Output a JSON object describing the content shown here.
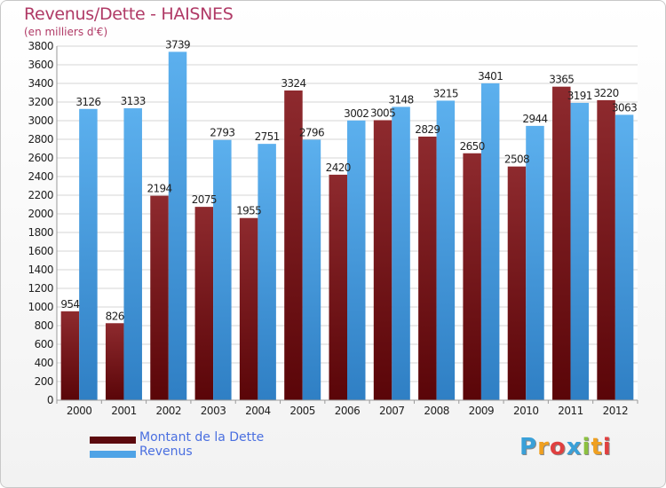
{
  "header": {
    "title": "Revenus/Dette - HAISNES",
    "subtitle": "(en milliers d'€)"
  },
  "legend": {
    "items": [
      {
        "label": "Montant de la Dette",
        "color": "#7a1418"
      },
      {
        "label": "Revenus",
        "color": "#4fa3e6"
      }
    ]
  },
  "logo": {
    "text": "Proxiti",
    "letters": [
      {
        "char": "P",
        "color": "#3aa0d8"
      },
      {
        "char": "r",
        "color": "#f0a020"
      },
      {
        "char": "o",
        "color": "#e04040"
      },
      {
        "char": "x",
        "color": "#3aa0d8"
      },
      {
        "char": "i",
        "color": "#8cc040"
      },
      {
        "char": "t",
        "color": "#f0a020"
      },
      {
        "char": "i",
        "color": "#e04040"
      }
    ]
  },
  "chart_data": {
    "type": "bar",
    "categories": [
      "2000",
      "2001",
      "2002",
      "2003",
      "2004",
      "2005",
      "2006",
      "2007",
      "2008",
      "2009",
      "2010",
      "2011",
      "2012"
    ],
    "series": [
      {
        "name": "Montant de la Dette",
        "color": "#7a1418",
        "values": [
          954,
          826,
          2194,
          2075,
          1955,
          3324,
          2420,
          3005,
          2829,
          2650,
          2508,
          3365,
          3220
        ]
      },
      {
        "name": "Revenus",
        "color": "#4fa3e6",
        "values": [
          3126,
          3133,
          3739,
          2793,
          2751,
          2796,
          3002,
          3148,
          3215,
          3401,
          2944,
          3191,
          3063
        ]
      }
    ],
    "ylim": [
      0,
      3800
    ],
    "ytick_step": 200,
    "grid": true,
    "legend_position": "bottom-left"
  }
}
